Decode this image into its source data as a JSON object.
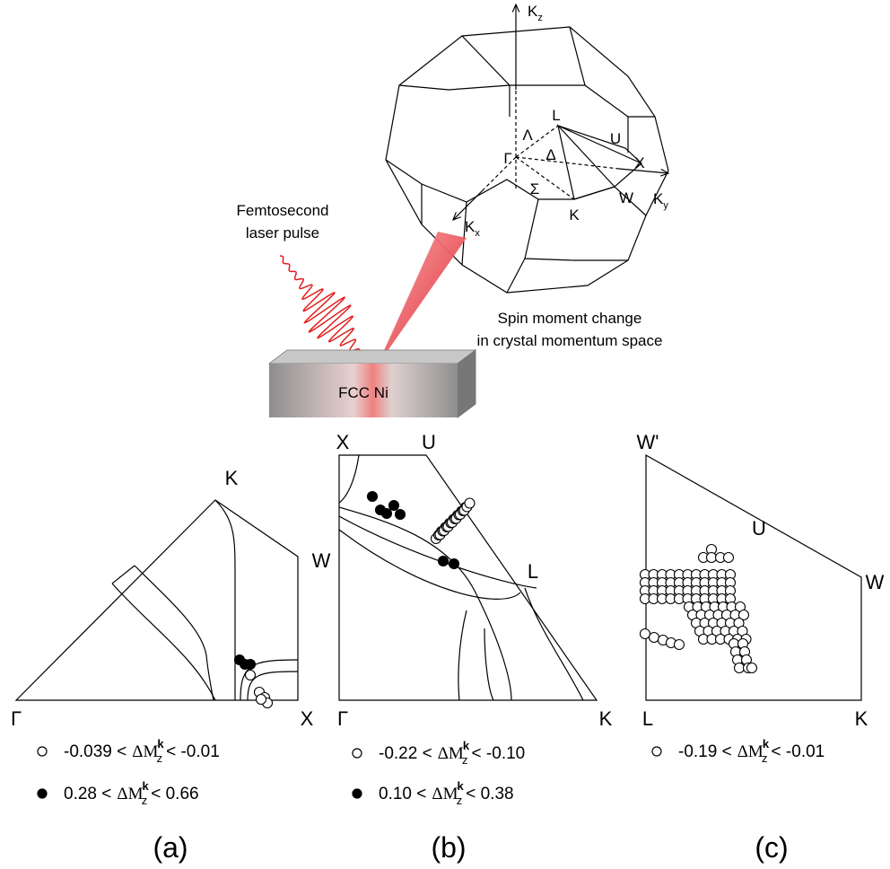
{
  "laser_label": [
    "Femtosecond",
    "laser pulse"
  ],
  "caption": [
    "Spin moment change",
    "in crystal momentum space"
  ],
  "sample": "FCC Ni",
  "brillouin_zone": {
    "axes": [
      {
        "text": "K",
        "sub": "z"
      },
      {
        "text": "K",
        "sub": "y"
      },
      {
        "text": "K",
        "sub": "x"
      }
    ],
    "points": [
      "Γ",
      "Λ",
      "L",
      "Δ",
      "U",
      "X",
      "Σ",
      "K",
      "W"
    ]
  },
  "panels": [
    {
      "label": "(a)",
      "vertices": [
        "K",
        "W",
        "Γ",
        "X"
      ],
      "legend": [
        {
          "prefix": "-0.039 <",
          "quantity": "ΔM",
          "sup": "k",
          "sub": "z",
          "suffix": "< -0.01"
        },
        {
          "prefix": "0.28 <",
          "quantity": "ΔM",
          "sup": "k",
          "sub": "z",
          "suffix": "< 0.66"
        }
      ]
    },
    {
      "label": "(b)",
      "vertices": [
        "X",
        "U",
        "L",
        "Γ",
        "K"
      ],
      "legend": [
        {
          "prefix": "-0.22 <",
          "quantity": "ΔM",
          "sup": "k",
          "sub": "z",
          "suffix": "< -0.10"
        },
        {
          "prefix": "0.10 <",
          "quantity": "ΔM",
          "sup": "k",
          "sub": "z",
          "suffix": "< 0.38"
        }
      ]
    },
    {
      "label": "(c)",
      "vertices": [
        "W'",
        "U",
        "W",
        "L",
        "K"
      ],
      "legend": [
        {
          "prefix": "-0.19 <",
          "quantity": "ΔM",
          "sup": "k",
          "sub": "z",
          "suffix": "< -0.01"
        }
      ]
    }
  ]
}
